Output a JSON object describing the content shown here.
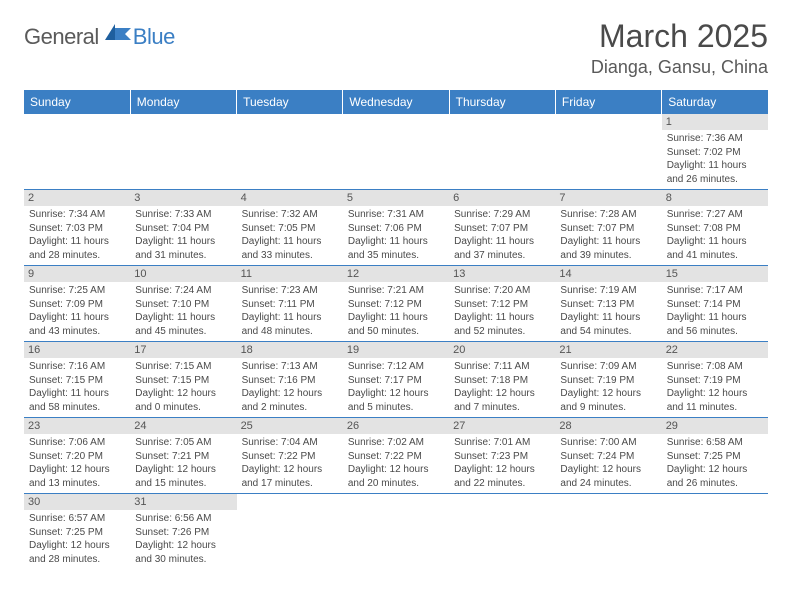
{
  "logo": {
    "general": "General",
    "blue": "Blue"
  },
  "title": "March 2025",
  "location": "Dianga, Gansu, China",
  "colors": {
    "accent": "#3b7fc4",
    "header_text": "#ffffff",
    "daybg": "#e3e3e3",
    "text": "#4a4a4a"
  },
  "weekdays": [
    "Sunday",
    "Monday",
    "Tuesday",
    "Wednesday",
    "Thursday",
    "Friday",
    "Saturday"
  ],
  "weeks": [
    [
      {
        "day": "",
        "sunrise": "",
        "sunset": "",
        "dl1": "",
        "dl2": ""
      },
      {
        "day": "",
        "sunrise": "",
        "sunset": "",
        "dl1": "",
        "dl2": ""
      },
      {
        "day": "",
        "sunrise": "",
        "sunset": "",
        "dl1": "",
        "dl2": ""
      },
      {
        "day": "",
        "sunrise": "",
        "sunset": "",
        "dl1": "",
        "dl2": ""
      },
      {
        "day": "",
        "sunrise": "",
        "sunset": "",
        "dl1": "",
        "dl2": ""
      },
      {
        "day": "",
        "sunrise": "",
        "sunset": "",
        "dl1": "",
        "dl2": ""
      },
      {
        "day": "1",
        "sunrise": "Sunrise: 7:36 AM",
        "sunset": "Sunset: 7:02 PM",
        "dl1": "Daylight: 11 hours",
        "dl2": "and 26 minutes."
      }
    ],
    [
      {
        "day": "2",
        "sunrise": "Sunrise: 7:34 AM",
        "sunset": "Sunset: 7:03 PM",
        "dl1": "Daylight: 11 hours",
        "dl2": "and 28 minutes."
      },
      {
        "day": "3",
        "sunrise": "Sunrise: 7:33 AM",
        "sunset": "Sunset: 7:04 PM",
        "dl1": "Daylight: 11 hours",
        "dl2": "and 31 minutes."
      },
      {
        "day": "4",
        "sunrise": "Sunrise: 7:32 AM",
        "sunset": "Sunset: 7:05 PM",
        "dl1": "Daylight: 11 hours",
        "dl2": "and 33 minutes."
      },
      {
        "day": "5",
        "sunrise": "Sunrise: 7:31 AM",
        "sunset": "Sunset: 7:06 PM",
        "dl1": "Daylight: 11 hours",
        "dl2": "and 35 minutes."
      },
      {
        "day": "6",
        "sunrise": "Sunrise: 7:29 AM",
        "sunset": "Sunset: 7:07 PM",
        "dl1": "Daylight: 11 hours",
        "dl2": "and 37 minutes."
      },
      {
        "day": "7",
        "sunrise": "Sunrise: 7:28 AM",
        "sunset": "Sunset: 7:07 PM",
        "dl1": "Daylight: 11 hours",
        "dl2": "and 39 minutes."
      },
      {
        "day": "8",
        "sunrise": "Sunrise: 7:27 AM",
        "sunset": "Sunset: 7:08 PM",
        "dl1": "Daylight: 11 hours",
        "dl2": "and 41 minutes."
      }
    ],
    [
      {
        "day": "9",
        "sunrise": "Sunrise: 7:25 AM",
        "sunset": "Sunset: 7:09 PM",
        "dl1": "Daylight: 11 hours",
        "dl2": "and 43 minutes."
      },
      {
        "day": "10",
        "sunrise": "Sunrise: 7:24 AM",
        "sunset": "Sunset: 7:10 PM",
        "dl1": "Daylight: 11 hours",
        "dl2": "and 45 minutes."
      },
      {
        "day": "11",
        "sunrise": "Sunrise: 7:23 AM",
        "sunset": "Sunset: 7:11 PM",
        "dl1": "Daylight: 11 hours",
        "dl2": "and 48 minutes."
      },
      {
        "day": "12",
        "sunrise": "Sunrise: 7:21 AM",
        "sunset": "Sunset: 7:12 PM",
        "dl1": "Daylight: 11 hours",
        "dl2": "and 50 minutes."
      },
      {
        "day": "13",
        "sunrise": "Sunrise: 7:20 AM",
        "sunset": "Sunset: 7:12 PM",
        "dl1": "Daylight: 11 hours",
        "dl2": "and 52 minutes."
      },
      {
        "day": "14",
        "sunrise": "Sunrise: 7:19 AM",
        "sunset": "Sunset: 7:13 PM",
        "dl1": "Daylight: 11 hours",
        "dl2": "and 54 minutes."
      },
      {
        "day": "15",
        "sunrise": "Sunrise: 7:17 AM",
        "sunset": "Sunset: 7:14 PM",
        "dl1": "Daylight: 11 hours",
        "dl2": "and 56 minutes."
      }
    ],
    [
      {
        "day": "16",
        "sunrise": "Sunrise: 7:16 AM",
        "sunset": "Sunset: 7:15 PM",
        "dl1": "Daylight: 11 hours",
        "dl2": "and 58 minutes."
      },
      {
        "day": "17",
        "sunrise": "Sunrise: 7:15 AM",
        "sunset": "Sunset: 7:15 PM",
        "dl1": "Daylight: 12 hours",
        "dl2": "and 0 minutes."
      },
      {
        "day": "18",
        "sunrise": "Sunrise: 7:13 AM",
        "sunset": "Sunset: 7:16 PM",
        "dl1": "Daylight: 12 hours",
        "dl2": "and 2 minutes."
      },
      {
        "day": "19",
        "sunrise": "Sunrise: 7:12 AM",
        "sunset": "Sunset: 7:17 PM",
        "dl1": "Daylight: 12 hours",
        "dl2": "and 5 minutes."
      },
      {
        "day": "20",
        "sunrise": "Sunrise: 7:11 AM",
        "sunset": "Sunset: 7:18 PM",
        "dl1": "Daylight: 12 hours",
        "dl2": "and 7 minutes."
      },
      {
        "day": "21",
        "sunrise": "Sunrise: 7:09 AM",
        "sunset": "Sunset: 7:19 PM",
        "dl1": "Daylight: 12 hours",
        "dl2": "and 9 minutes."
      },
      {
        "day": "22",
        "sunrise": "Sunrise: 7:08 AM",
        "sunset": "Sunset: 7:19 PM",
        "dl1": "Daylight: 12 hours",
        "dl2": "and 11 minutes."
      }
    ],
    [
      {
        "day": "23",
        "sunrise": "Sunrise: 7:06 AM",
        "sunset": "Sunset: 7:20 PM",
        "dl1": "Daylight: 12 hours",
        "dl2": "and 13 minutes."
      },
      {
        "day": "24",
        "sunrise": "Sunrise: 7:05 AM",
        "sunset": "Sunset: 7:21 PM",
        "dl1": "Daylight: 12 hours",
        "dl2": "and 15 minutes."
      },
      {
        "day": "25",
        "sunrise": "Sunrise: 7:04 AM",
        "sunset": "Sunset: 7:22 PM",
        "dl1": "Daylight: 12 hours",
        "dl2": "and 17 minutes."
      },
      {
        "day": "26",
        "sunrise": "Sunrise: 7:02 AM",
        "sunset": "Sunset: 7:22 PM",
        "dl1": "Daylight: 12 hours",
        "dl2": "and 20 minutes."
      },
      {
        "day": "27",
        "sunrise": "Sunrise: 7:01 AM",
        "sunset": "Sunset: 7:23 PM",
        "dl1": "Daylight: 12 hours",
        "dl2": "and 22 minutes."
      },
      {
        "day": "28",
        "sunrise": "Sunrise: 7:00 AM",
        "sunset": "Sunset: 7:24 PM",
        "dl1": "Daylight: 12 hours",
        "dl2": "and 24 minutes."
      },
      {
        "day": "29",
        "sunrise": "Sunrise: 6:58 AM",
        "sunset": "Sunset: 7:25 PM",
        "dl1": "Daylight: 12 hours",
        "dl2": "and 26 minutes."
      }
    ],
    [
      {
        "day": "30",
        "sunrise": "Sunrise: 6:57 AM",
        "sunset": "Sunset: 7:25 PM",
        "dl1": "Daylight: 12 hours",
        "dl2": "and 28 minutes."
      },
      {
        "day": "31",
        "sunrise": "Sunrise: 6:56 AM",
        "sunset": "Sunset: 7:26 PM",
        "dl1": "Daylight: 12 hours",
        "dl2": "and 30 minutes."
      },
      {
        "day": "",
        "sunrise": "",
        "sunset": "",
        "dl1": "",
        "dl2": ""
      },
      {
        "day": "",
        "sunrise": "",
        "sunset": "",
        "dl1": "",
        "dl2": ""
      },
      {
        "day": "",
        "sunrise": "",
        "sunset": "",
        "dl1": "",
        "dl2": ""
      },
      {
        "day": "",
        "sunrise": "",
        "sunset": "",
        "dl1": "",
        "dl2": ""
      },
      {
        "day": "",
        "sunrise": "",
        "sunset": "",
        "dl1": "",
        "dl2": ""
      }
    ]
  ]
}
